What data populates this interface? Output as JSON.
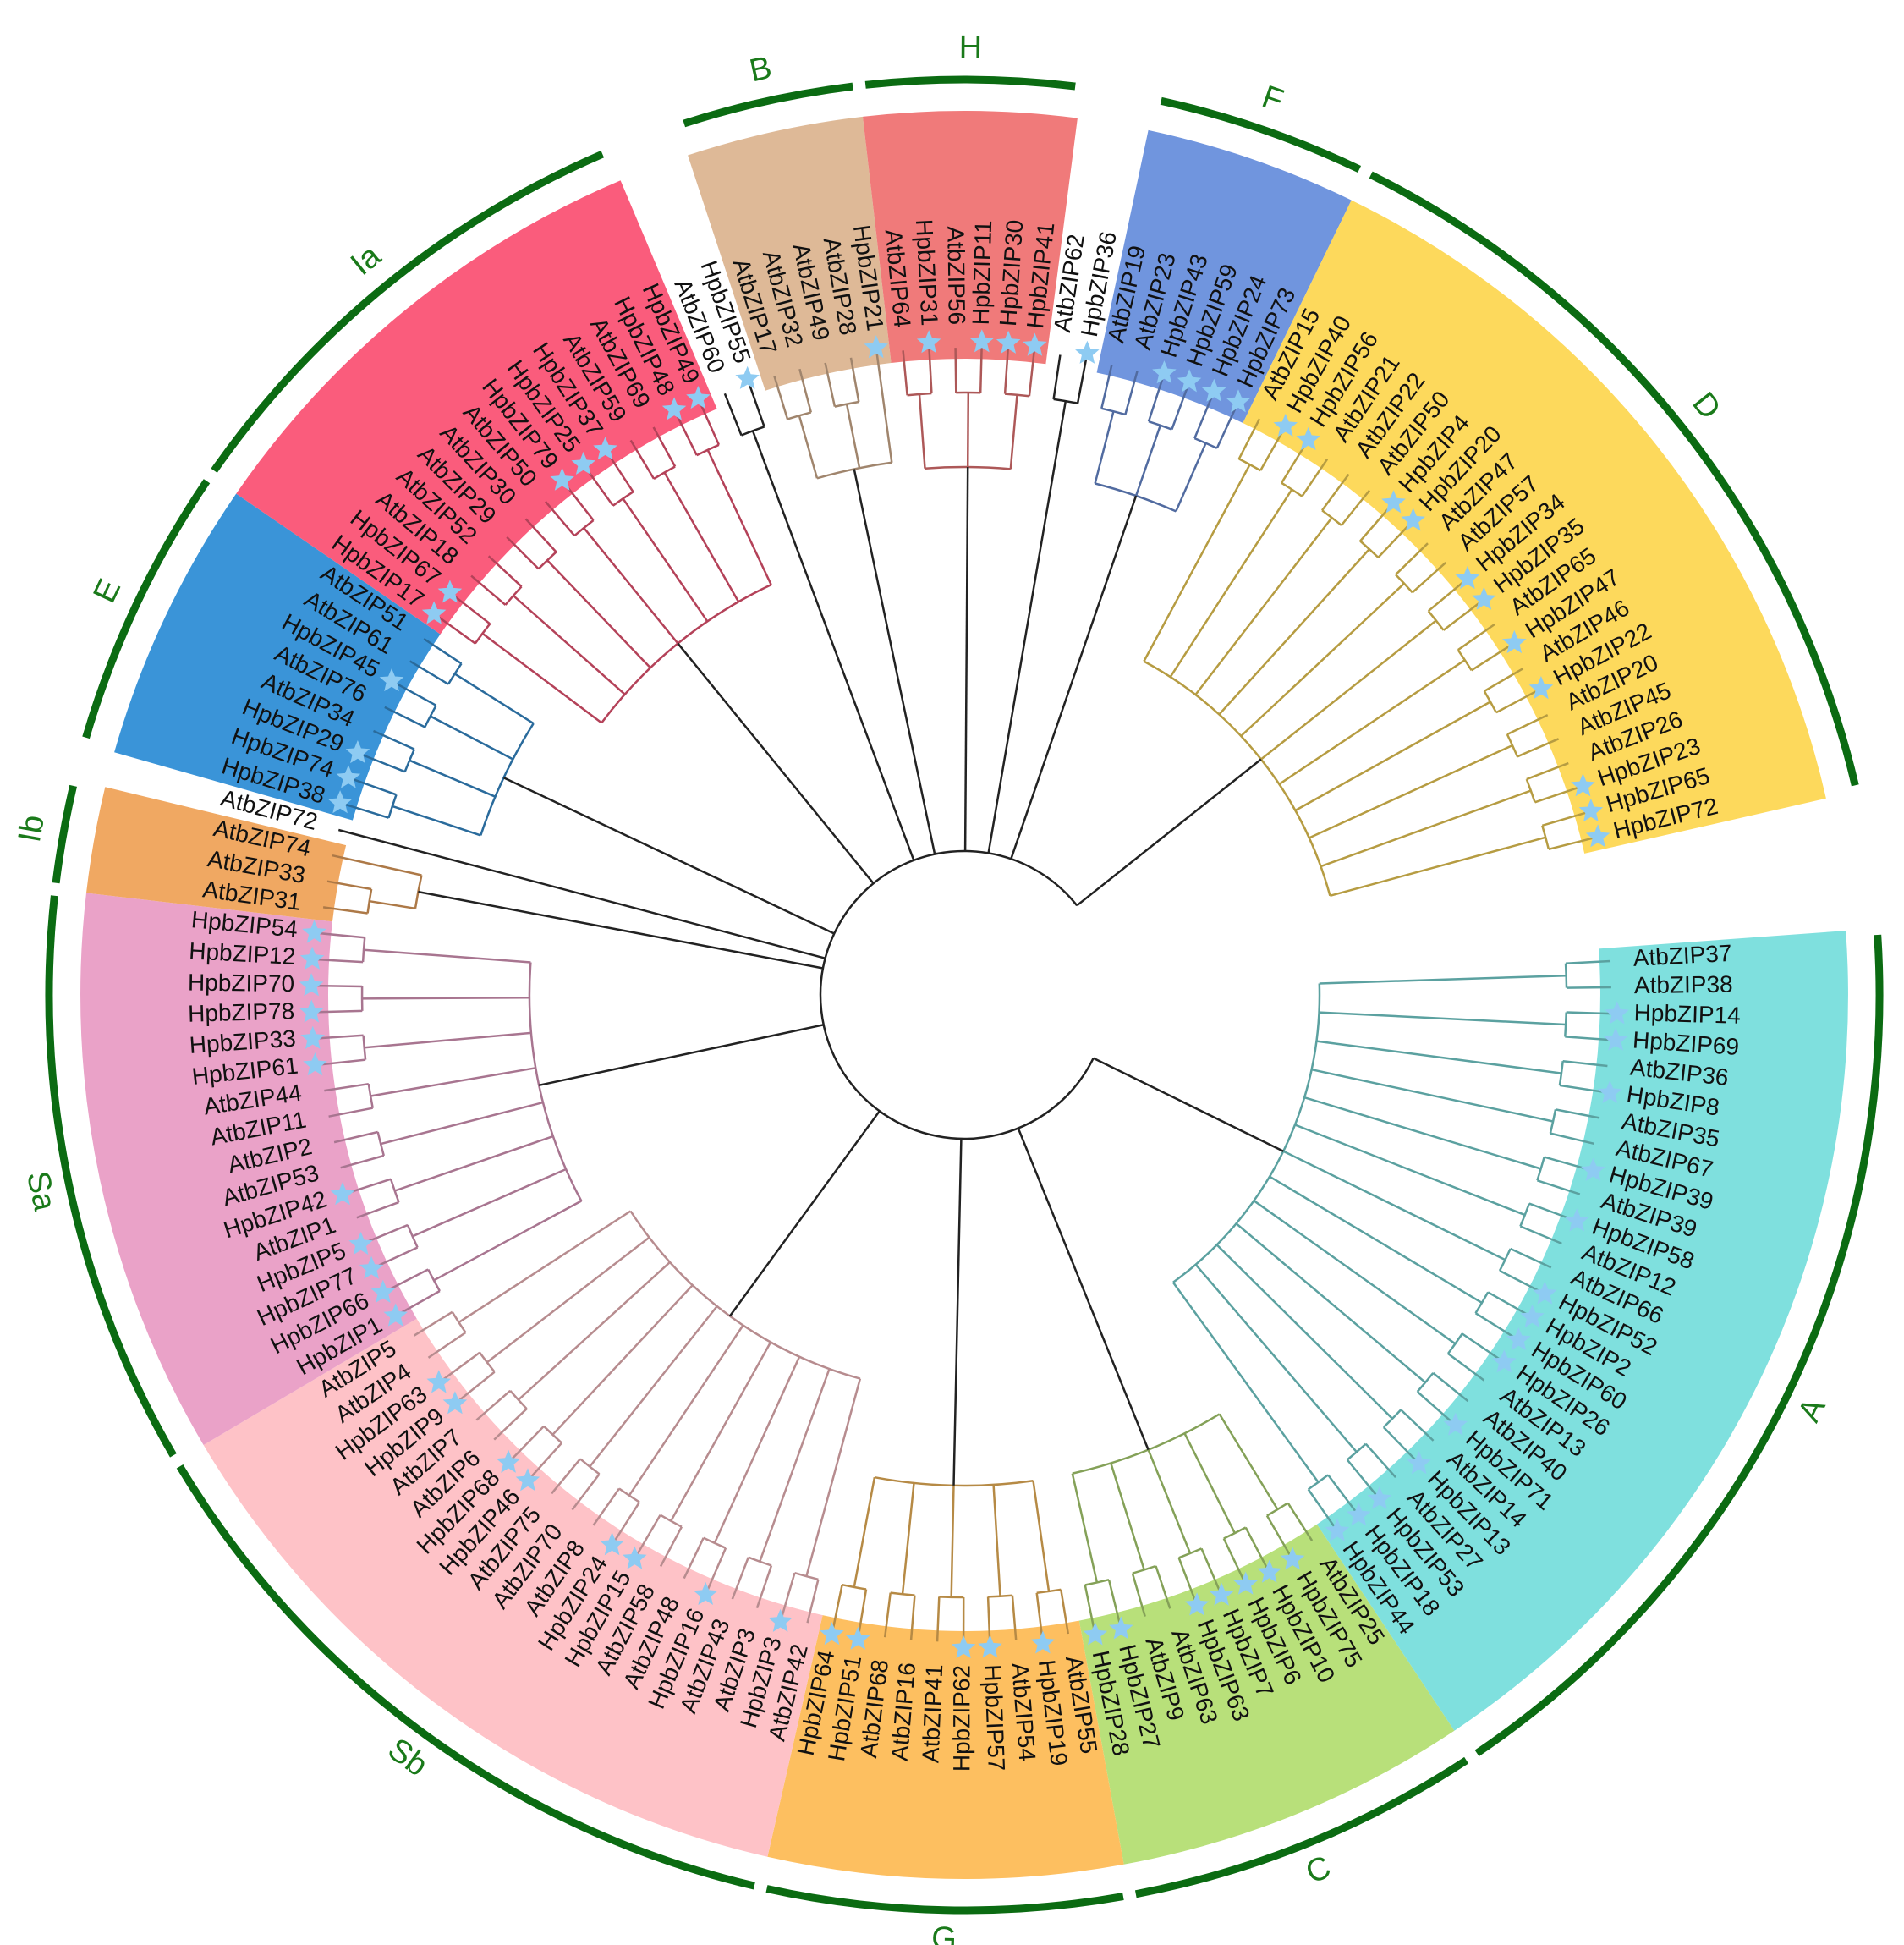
{
  "groups": [
    {
      "name": "A",
      "color": "#7fe0de",
      "leaves": [
        "AtbZIP37",
        "AtbZIP38",
        "HpbZIP14",
        "HpbZIP69",
        "AtbZIP36",
        "HpbZIP8",
        "AtbZIP35",
        "AtbZIP67",
        "HpbZIP39",
        "AtbZIP39",
        "HpbZIP58",
        "AtbZIP12",
        "AtbZIP66",
        "HpbZIP52",
        "HpbZIP2",
        "HpbZIP60",
        "HpbZIP26",
        "AtbZIP13",
        "AtbZIP40",
        "HpbZIP71",
        "AtbZIP14",
        "HpbZIP13",
        "AtbZIP27",
        "HpbZIP53",
        "HpbZIP18",
        "HpbZIP44"
      ]
    },
    {
      "name": "C",
      "color": "#b8e07a",
      "leaves": [
        "AtbZIP25",
        "HpbZIP75",
        "HpbZIP10",
        "HpbZIP6",
        "HpbZIP7",
        "HpbZIP63",
        "AtbZIP63",
        "AtbZIP9",
        "HpbZIP27",
        "HpbZIP28"
      ]
    },
    {
      "name": "G",
      "color": "#fdbf60",
      "leaves": [
        "AtbZIP55",
        "HpbZIP19",
        "AtbZIP54",
        "HpbZIP57",
        "HpbZIP62",
        "AtbZIP41",
        "AtbZIP16",
        "AtbZIP68",
        "HpbZIP51",
        "HpbZIP64"
      ]
    },
    {
      "name": "Sb",
      "color": "#fec2c7",
      "leaves": [
        "AtbZIP42",
        "HpbZIP3",
        "AtbZIP3",
        "AtbZIP43",
        "HpbZIP16",
        "AtbZIP48",
        "AtbZIP58",
        "HpbZIP15",
        "HpbZIP24",
        "AtbZIP8",
        "AtbZIP70",
        "AtbZIP75",
        "HpbZIP46",
        "HpbZIP68",
        "AtbZIP6",
        "AtbZIP7",
        "HpbZIP9",
        "HpbZIP63",
        "AtbZIP4",
        "AtbZIP5"
      ]
    },
    {
      "name": "Sa",
      "color": "#eaa2c8",
      "leaves": [
        "HpbZIP1",
        "HpbZIP66",
        "HpbZIP77",
        "HpbZIP5",
        "AtbZIP1",
        "HpbZIP42",
        "AtbZIP53",
        "AtbZIP2",
        "AtbZIP11",
        "AtbZIP44",
        "HpbZIP61",
        "HpbZIP33",
        "HpbZIP78",
        "HpbZIP70",
        "HpbZIP12",
        "HpbZIP54"
      ]
    },
    {
      "name": "Ib",
      "color": "#f0a862",
      "leaves": [
        "AtbZIP31",
        "AtbZIP33",
        "AtbZIP74"
      ]
    },
    {
      "leaves": [
        "AtbZIP72"
      ]
    },
    {
      "name": "E",
      "color": "#3a94d8",
      "leaves": [
        "HpbZIP38",
        "HpbZIP74",
        "HpbZIP29",
        "AtbZIP34",
        "AtbZIP76",
        "HpbZIP45",
        "AtbZIP61",
        "AtbZIP51"
      ]
    },
    {
      "name": "Ia",
      "color": "#fa5c7c",
      "leaves": [
        "HpbZIP17",
        "HpbZIP67",
        "AtbZIP18",
        "AtbZIP52",
        "AtbZIP29",
        "AtbZIP30",
        "AtbZIP50",
        "HpbZIP79",
        "HpbZIP25",
        "HpbZIP37",
        "AtbZIP59",
        "AtbZIP69",
        "HpbZIP48",
        "HpbZIP49"
      ]
    },
    {
      "leaves": [
        "AtbZIP60",
        "HpbZIP55"
      ]
    },
    {
      "name": "B",
      "color": "#deb997",
      "leaves": [
        "AtbZIP17",
        "AtbZIP32",
        "AtbZIP49",
        "AtbZIP28",
        "HpbZIP21"
      ]
    },
    {
      "name": "H",
      "color": "#f07a7a",
      "leaves": [
        "AtbZIP64",
        "HpbZIP31",
        "AtbZIP56",
        "HpbZIP11",
        "HpbZIP30",
        "HpbZIP41"
      ]
    },
    {
      "leaves": [
        "AtbZIP62",
        "HpbZIP36"
      ]
    },
    {
      "name": "F",
      "color": "#7095de",
      "leaves": [
        "AtbZIP19",
        "AtbZIP23",
        "HpbZIP43",
        "HpbZIP59",
        "HpbZIP24",
        "HpbZIP73"
      ]
    },
    {
      "name": "D",
      "color": "#fdd95c",
      "leaves": [
        "AtbZIP15",
        "HpbZIP40",
        "HpbZIP56",
        "AtbZIP21",
        "AtbZIP22",
        "AtbZIP50",
        "HpbZIP4",
        "HpbZIP20",
        "AtbZIP47",
        "AtbZIP57",
        "HpbZIP34",
        "HpbZIP35",
        "AtbZIP65",
        "HpbZIP47",
        "AtbZIP46",
        "HpbZIP22",
        "AtbZIP20",
        "AtbZIP45",
        "AtbZIP26",
        "HpbZIP23",
        "HpbZIP65",
        "HpbZIP72"
      ]
    }
  ]
}
